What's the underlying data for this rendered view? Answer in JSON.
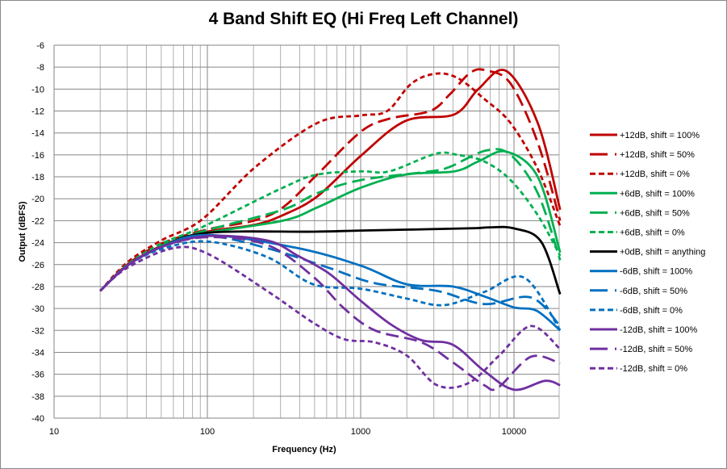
{
  "chart_data": {
    "type": "line",
    "title": "4 Band Shift EQ (Hi Freq Left Channel)",
    "xlabel": "Frequency (Hz)",
    "ylabel": "Output (dBFS)",
    "xscale": "log",
    "xlim": [
      10,
      20000
    ],
    "ylim": [
      -40,
      -6
    ],
    "xticks": [
      "10",
      "100",
      "1000",
      "10000"
    ],
    "yticks": [
      "-6",
      "-8",
      "-10",
      "-12",
      "-14",
      "-16",
      "-18",
      "-20",
      "-22",
      "-24",
      "-26",
      "-28",
      "-30",
      "-32",
      "-34",
      "-36",
      "-38",
      "-40"
    ],
    "grid": true,
    "legend_position": "right",
    "series": [
      {
        "name": "+12dB, shift = 100%",
        "color": "#C00000",
        "style": "solid",
        "x": [
          20,
          30,
          50,
          100,
          200,
          310,
          520,
          1000,
          1960,
          4100,
          5850,
          8900,
          14300,
          20000
        ],
        "y": [
          -28.4,
          -26.1,
          -24.3,
          -23.0,
          -22.4,
          -21.5,
          -19.8,
          -16.1,
          -12.9,
          -12.3,
          -10,
          -8.35,
          -13.1,
          -21
        ]
      },
      {
        "name": "+12dB, shift = 50%",
        "color": "#C00000",
        "style": "longdash",
        "x": [
          20,
          30,
          50,
          100,
          200,
          310,
          520,
          1000,
          1540,
          2840,
          3800,
          5200,
          6600,
          9500,
          14300,
          20000
        ],
        "y": [
          -28.4,
          -26.0,
          -24.1,
          -22.8,
          -22,
          -20.8,
          -17.8,
          -13.9,
          -12.7,
          -12,
          -10.5,
          -8.5,
          -8.3,
          -9.5,
          -14.9,
          -22
        ]
      },
      {
        "name": "+12dB, shift = 0%",
        "color": "#C00000",
        "style": "shortdash",
        "x": [
          20,
          30,
          50,
          92,
          206,
          520,
          1000,
          1490,
          2140,
          3070,
          4300,
          6400,
          9500,
          14300,
          20000
        ],
        "y": [
          -28.4,
          -25.8,
          -23.8,
          -21.9,
          -17.1,
          -13.1,
          -12.4,
          -12,
          -9.5,
          -8.6,
          -9,
          -10.9,
          -13.1,
          -17.3,
          -22.5
        ]
      },
      {
        "name": "+6dB, shift = 100%",
        "color": "#00B050",
        "style": "solid",
        "x": [
          20,
          30,
          50,
          92,
          310,
          520,
          1000,
          1960,
          4100,
          5850,
          8900,
          14300,
          20000
        ],
        "y": [
          -28.4,
          -26.1,
          -24.4,
          -23.2,
          -22,
          -20.8,
          -19,
          -17.8,
          -17.5,
          -16.6,
          -15.7,
          -18,
          -24.9
        ]
      },
      {
        "name": "+6dB, shift = 50%",
        "color": "#00B050",
        "style": "longdash",
        "x": [
          20,
          30,
          50,
          92,
          310,
          520,
          1000,
          2840,
          3800,
          6600,
          9500,
          14300,
          20000
        ],
        "y": [
          -28.4,
          -26.1,
          -24.3,
          -23,
          -21,
          -19.5,
          -18.3,
          -17.5,
          -17.1,
          -15.6,
          -16,
          -19.5,
          -25.6
        ]
      },
      {
        "name": "+6dB, shift = 0%",
        "color": "#00B050",
        "style": "shortdash",
        "x": [
          20,
          30,
          50,
          92,
          310,
          520,
          1000,
          1540,
          3070,
          4300,
          6400,
          9500,
          14300,
          20000
        ],
        "y": [
          -28.4,
          -26,
          -24.1,
          -22.6,
          -19,
          -17.8,
          -17.5,
          -17.5,
          -15.9,
          -16,
          -16.6,
          -18.3,
          -21.5,
          -25.2
        ]
      },
      {
        "name": "+0dB, shift = anything",
        "color": "#000000",
        "style": "solid",
        "x": [
          20,
          30,
          50,
          100,
          500,
          1000,
          5000,
          7000,
          10000,
          15000,
          20000
        ],
        "y": [
          -28.4,
          -26.1,
          -24.4,
          -23.1,
          -23,
          -22.9,
          -22.7,
          -22.6,
          -22.7,
          -23.9,
          -28.7
        ]
      },
      {
        "name": "-6dB, shift = 100%",
        "color": "#0070C0",
        "style": "solid",
        "x": [
          20,
          30,
          50,
          100,
          389,
          1000,
          2000,
          3980,
          6400,
          10000,
          14000,
          20000
        ],
        "y": [
          -28.4,
          -26.1,
          -24.4,
          -23.3,
          -24.5,
          -26.1,
          -27.8,
          -28,
          -28.9,
          -29.9,
          -30.2,
          -32
        ]
      },
      {
        "name": "-6dB, shift = 50%",
        "color": "#0070C0",
        "style": "longdash",
        "x": [
          20,
          30,
          50,
          100,
          245,
          620,
          1240,
          3150,
          6400,
          12900,
          20000
        ],
        "y": [
          -28.4,
          -26.1,
          -24.4,
          -23.4,
          -24.5,
          -26.3,
          -27.7,
          -28.4,
          -29.6,
          -29,
          -31.6
        ]
      },
      {
        "name": "-6dB, shift = 0%",
        "color": "#0070C0",
        "style": "shortdash",
        "x": [
          20,
          30,
          50,
          100,
          245,
          490,
          1000,
          2000,
          3500,
          6400,
          11700,
          20000
        ],
        "y": [
          -28.4,
          -26.1,
          -24.6,
          -23.9,
          -25.3,
          -27.8,
          -28.2,
          -29.1,
          -29.7,
          -28.5,
          -27.2,
          -32
        ]
      },
      {
        "name": "-12dB, shift = 100%",
        "color": "#7030A0",
        "style": "solid",
        "x": [
          20,
          30,
          50,
          100,
          245,
          389,
          620,
          1000,
          1590,
          2500,
          3980,
          6400,
          10000,
          15900,
          20000
        ],
        "y": [
          -28.4,
          -26.1,
          -24.4,
          -23.4,
          -23.8,
          -25.2,
          -26.8,
          -29.3,
          -31.5,
          -32.9,
          -33.3,
          -35.7,
          -37.4,
          -36.6,
          -37
        ]
      },
      {
        "name": "-12dB, shift = 50%",
        "color": "#7030A0",
        "style": "longdash",
        "x": [
          20,
          30,
          50,
          100,
          245,
          490,
          780,
          1240,
          2500,
          3980,
          6400,
          7900,
          12900,
          20000
        ],
        "y": [
          -28.4,
          -26.1,
          -24.4,
          -23.5,
          -24.2,
          -27.1,
          -30,
          -32,
          -33.1,
          -34.9,
          -37,
          -37.2,
          -34.4,
          -35
        ]
      },
      {
        "name": "-12dB, shift = 0%",
        "color": "#7030A0",
        "style": "shortdash",
        "x": [
          20,
          30,
          60,
          100,
          245,
          490,
          780,
          1240,
          2000,
          3150,
          5060,
          8000,
          12900,
          20000
        ],
        "y": [
          -28.4,
          -26.3,
          -24.5,
          -25,
          -28.4,
          -31.3,
          -32.8,
          -33.1,
          -34.3,
          -37,
          -36.8,
          -34.3,
          -31.6,
          -33.7
        ]
      }
    ]
  }
}
